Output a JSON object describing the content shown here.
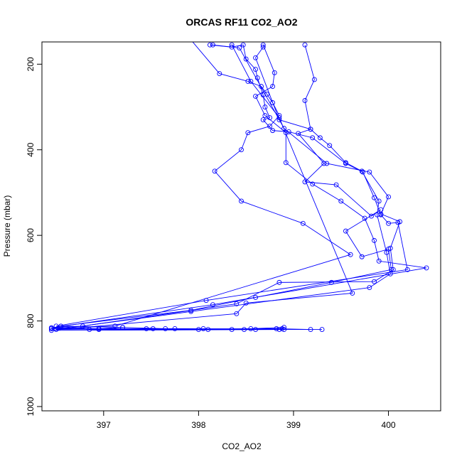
{
  "chart_data": {
    "type": "line",
    "title": "ORCAS RF11 CO2_AO2",
    "xlabel": "CO2_AO2",
    "ylabel": "Pressure (mbar)",
    "xlim": [
      396.35,
      400.55
    ],
    "ylim": [
      1010,
      148
    ],
    "y_reversed": true,
    "xticks": [
      397,
      398,
      399,
      400
    ],
    "yticks": [
      200,
      400,
      600,
      800,
      1000
    ],
    "grid": false,
    "markers": "open-circle",
    "colors": {
      "series": "#0000ff",
      "axes": "#000000"
    },
    "series": [
      {
        "points": [
          [
            397.85,
            125
          ],
          [
            398.22,
            222
          ],
          [
            398.52,
            240
          ],
          [
            398.66,
            252
          ],
          [
            398.72,
            270
          ],
          [
            398.78,
            290
          ],
          [
            398.85,
            320
          ],
          [
            398.75,
            345
          ],
          [
            398.52,
            360
          ],
          [
            398.45,
            400
          ],
          [
            398.17,
            450
          ],
          [
            398.45,
            520
          ],
          [
            399.1,
            572
          ],
          [
            399.6,
            645
          ],
          [
            397.12,
            812
          ],
          [
            396.45,
            818
          ],
          [
            398.88,
            818
          ],
          [
            398.9,
            815
          ],
          [
            398.55,
            818
          ],
          [
            398.05,
            818
          ],
          [
            397.75,
            818
          ],
          [
            397.45,
            818
          ],
          [
            396.95,
            820
          ],
          [
            399.3,
            820
          ]
        ]
      },
      {
        "points": [
          [
            398.15,
            155
          ],
          [
            398.35,
            160
          ],
          [
            398.47,
            155
          ],
          [
            398.5,
            188
          ],
          [
            398.6,
            212
          ],
          [
            398.62,
            232
          ],
          [
            398.68,
            272
          ],
          [
            398.7,
            300
          ],
          [
            398.75,
            325
          ],
          [
            398.68,
            330
          ],
          [
            398.78,
            355
          ],
          [
            398.95,
            358
          ],
          [
            399.2,
            372
          ],
          [
            399.55,
            432
          ],
          [
            399.73,
            452
          ],
          [
            399.85,
            512
          ],
          [
            399.92,
            552
          ],
          [
            400.0,
            572
          ],
          [
            400.1,
            570
          ],
          [
            400.2,
            680
          ],
          [
            398.08,
            752
          ],
          [
            396.5,
            812
          ],
          [
            396.85,
            820
          ],
          [
            398.9,
            820
          ]
        ]
      },
      {
        "points": [
          [
            398.68,
            155
          ],
          [
            398.8,
            220
          ],
          [
            398.78,
            252
          ],
          [
            398.6,
            275
          ],
          [
            398.7,
            320
          ],
          [
            398.92,
            360
          ],
          [
            398.92,
            430
          ],
          [
            399.2,
            480
          ],
          [
            399.5,
            520
          ],
          [
            399.75,
            560
          ],
          [
            399.85,
            612
          ],
          [
            399.9,
            660
          ],
          [
            400.4,
            676
          ],
          [
            398.15,
            762
          ],
          [
            396.45,
            816
          ],
          [
            396.95,
            818
          ],
          [
            397.2,
            815
          ],
          [
            397.65,
            818
          ],
          [
            398.1,
            820
          ],
          [
            398.35,
            820
          ],
          [
            398.82,
            818
          ],
          [
            399.18,
            820
          ]
        ]
      },
      {
        "points": [
          [
            399.12,
            155
          ],
          [
            399.22,
            236
          ],
          [
            399.12,
            285
          ],
          [
            399.18,
            352
          ],
          [
            399.28,
            372
          ],
          [
            399.38,
            390
          ],
          [
            399.55,
            430
          ],
          [
            399.72,
            450
          ],
          [
            399.9,
            520
          ],
          [
            399.88,
            552
          ],
          [
            399.98,
            640
          ],
          [
            400.02,
            690
          ],
          [
            399.8,
            722
          ],
          [
            397.92,
            778
          ],
          [
            396.5,
            820
          ],
          [
            397.52,
            818
          ],
          [
            398.0,
            820
          ],
          [
            398.48,
            820
          ],
          [
            398.6,
            820
          ]
        ]
      },
      {
        "points": [
          [
            398.12,
            155
          ],
          [
            398.43,
            162
          ],
          [
            398.9,
            350
          ],
          [
            399.35,
            432
          ],
          [
            399.8,
            452
          ],
          [
            400.0,
            510
          ],
          [
            399.92,
            550
          ],
          [
            400.12,
            568
          ],
          [
            400.02,
            630
          ],
          [
            400.05,
            680
          ],
          [
            399.85,
            708
          ],
          [
            398.85,
            710
          ],
          [
            398.4,
            760
          ],
          [
            396.78,
            812
          ],
          [
            396.45,
            816
          ]
        ]
      },
      {
        "points": [
          [
            398.68,
            160
          ],
          [
            398.6,
            185
          ],
          [
            398.85,
            330
          ],
          [
            399.18,
            352
          ],
          [
            399.05,
            362
          ],
          [
            399.32,
            432
          ],
          [
            399.12,
            475
          ],
          [
            399.45,
            482
          ],
          [
            399.82,
            555
          ],
          [
            399.92,
            540
          ],
          [
            399.55,
            590
          ],
          [
            399.72,
            650
          ],
          [
            400.0,
            632
          ],
          [
            400.03,
            680
          ],
          [
            399.4,
            710
          ],
          [
            398.6,
            745
          ],
          [
            397.92,
            775
          ],
          [
            396.55,
            812
          ],
          [
            397.2,
            815
          ]
        ]
      },
      {
        "points": [
          [
            398.35,
            155
          ],
          [
            398.55,
            240
          ],
          [
            398.85,
            325
          ],
          [
            399.62,
            735
          ],
          [
            398.5,
            758
          ],
          [
            398.4,
            783
          ],
          [
            396.45,
            822
          ],
          [
            398.85,
            820
          ]
        ]
      }
    ]
  }
}
